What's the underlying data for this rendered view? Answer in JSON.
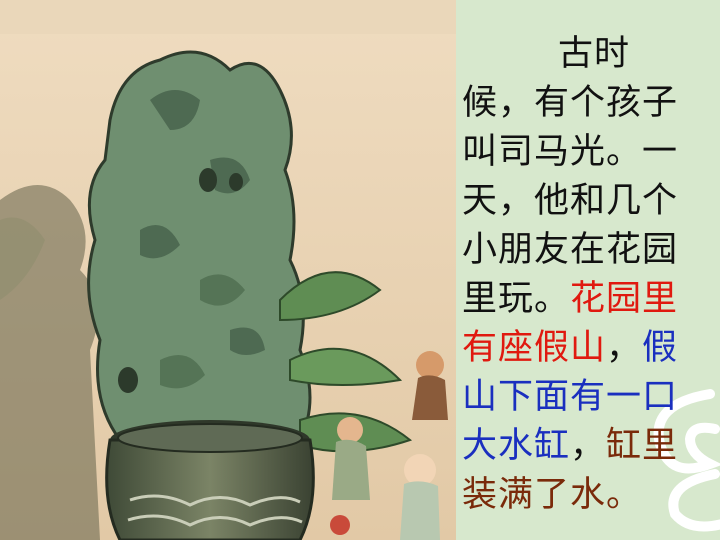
{
  "slide": {
    "colors": {
      "panel_bg": "#d7e8cd",
      "normal": "#111111",
      "red": "#e0190f",
      "blue": "#1a2fbf",
      "brown": "#7a2a0a"
    },
    "illustration": {
      "scene": "rockery-with-water-vat-and-children"
    },
    "story": {
      "l1": "古时",
      "l2": "候，有个孩子",
      "l3": "叫司马光。一",
      "l4": "天，他和几个",
      "l5": "小朋友在花园",
      "l6a": "里玩。",
      "l6b": "花园里",
      "l7a": "有座假山",
      "l7b": "，",
      "l7c": "假",
      "l8": "山下面有一口",
      "l9a": "大水缸",
      "l9b": "，",
      "l9c": "缸里",
      "l10": "装满了水。"
    }
  }
}
